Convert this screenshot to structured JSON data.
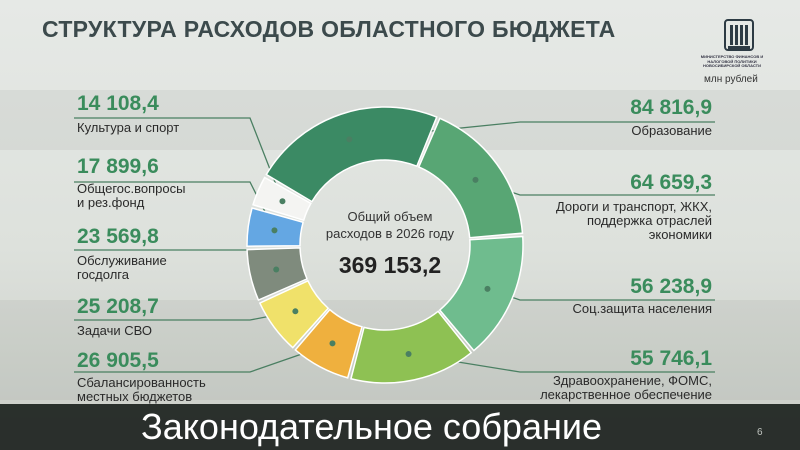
{
  "title": "СТРУКТУРА РАСХОДОВ ОБЛАСТНОГО БЮДЖЕТА",
  "unit": "млн рублей",
  "org": "МИНИСТЕРСТВО ФИНАНСОВ И НАЛОГОВОЙ ПОЛИТИКИ НОВОСИБИРСКОЙ ОБЛАСТИ",
  "center_caption": "Общий объем\nрасходов в 2026 году",
  "center_total": "369 153,2",
  "footer_text": "Законодательное собрание",
  "page_number": "6",
  "colors": {
    "accent": "#3a8c5c",
    "leader": "#4a7f62"
  },
  "chart_data": {
    "type": "pie",
    "donut": true,
    "total": 369153.2,
    "total_label": "369 153,2",
    "center_text": "Общий объем\nрасходов в 2026 году",
    "unit": "млн рублей",
    "slices": [
      {
        "label": "Образование",
        "value": 84816.9,
        "value_label": "84 816,9",
        "color": "#3b8a64"
      },
      {
        "label": "Дороги и транспорт, ЖКХ,\nподдержка отраслей\nэкономики",
        "value": 64659.3,
        "value_label": "64 659,3",
        "color": "#58a674"
      },
      {
        "label": "Соц.защита населения",
        "value": 56238.9,
        "value_label": "56 238,9",
        "color": "#6fbc8e"
      },
      {
        "label": "Здравоохранение, ФОМС,\nлекарственное обеспечение",
        "value": 55746.1,
        "value_label": "55 746,1",
        "color": "#8ec153"
      },
      {
        "label": "Сбалансированность\nместных бюджетов",
        "value": 26905.5,
        "value_label": "26 905,5",
        "color": "#efb03e"
      },
      {
        "label": "Задачи СВО",
        "value": 25208.7,
        "value_label": "25 208,7",
        "color": "#f0e16a"
      },
      {
        "label": "Обслуживание\nгосдолга",
        "value": 23569.8,
        "value_label": "23 569,8",
        "color": "#7f8b7d"
      },
      {
        "label": "Общегос.вопросы\nи рез.фонд",
        "value": 17899.6,
        "value_label": "17 899,6",
        "color": "#64a7e3"
      },
      {
        "label": "Культура и спорт",
        "value": 14108.4,
        "value_label": "14 108,4",
        "color": "#f4f4f2"
      }
    ]
  }
}
